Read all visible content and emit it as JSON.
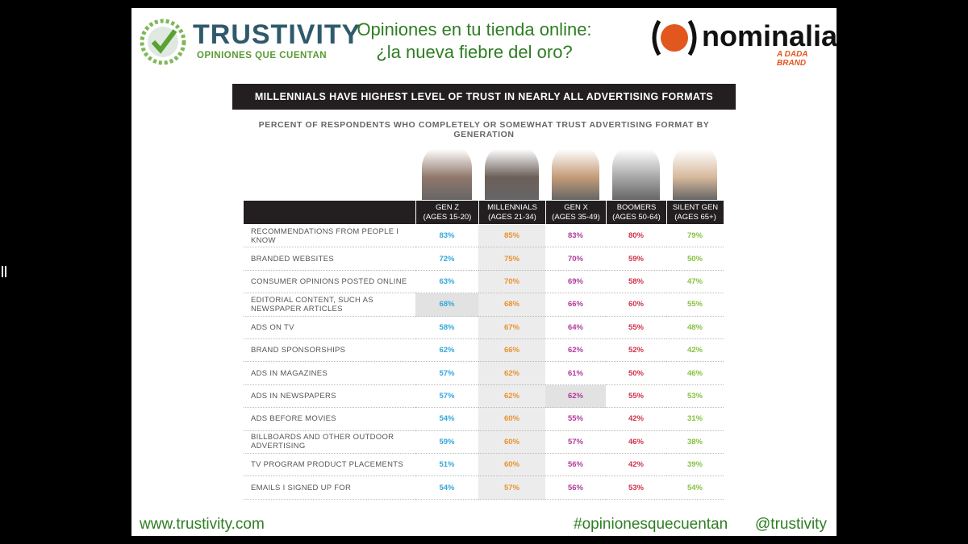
{
  "header": {
    "logo_name": "TRUSTIVITY",
    "logo_tagline": "OPINIONES QUE CUENTAN",
    "title_line1": "Opiniones en tu tienda online:",
    "title_line2": "¿la nueva fiebre del oro?",
    "partner_name": "nominalia",
    "partner_tagline": "A DADA BRAND"
  },
  "table": {
    "banner": "MILLENNIALS HAVE HIGHEST LEVEL OF TRUST IN NEARLY ALL ADVERTISING FORMATS",
    "subtitle": "PERCENT OF RESPONDENTS WHO COMPLETELY OR SOMEWHAT TRUST ADVERTISING FORMAT BY GENERATION",
    "columns": [
      {
        "name": "GEN Z",
        "ages": "(AGES 15-20)"
      },
      {
        "name": "MILLENNIALS",
        "ages": "(AGES 21-34)"
      },
      {
        "name": "GEN X",
        "ages": "(AGES 35-49)"
      },
      {
        "name": "BOOMERS",
        "ages": "(AGES 50-64)"
      },
      {
        "name": "SILENT GEN",
        "ages": "(AGES 65+)"
      }
    ],
    "rows": [
      [
        "RECOMMENDATIONS FROM PEOPLE I KNOW",
        "83%",
        "85%",
        "83%",
        "80%",
        "79%"
      ],
      [
        "BRANDED WEBSITES",
        "72%",
        "75%",
        "70%",
        "59%",
        "50%"
      ],
      [
        "CONSUMER OPINIONS POSTED ONLINE",
        "63%",
        "70%",
        "69%",
        "58%",
        "47%"
      ],
      [
        "EDITORIAL CONTENT, SUCH AS NEWSPAPER ARTICLES",
        "68%",
        "68%",
        "66%",
        "60%",
        "55%"
      ],
      [
        "ADS ON TV",
        "58%",
        "67%",
        "64%",
        "55%",
        "48%"
      ],
      [
        "BRAND SPONSORSHIPS",
        "62%",
        "66%",
        "62%",
        "52%",
        "42%"
      ],
      [
        "ADS IN MAGAZINES",
        "57%",
        "62%",
        "61%",
        "50%",
        "46%"
      ],
      [
        "ADS IN NEWSPAPERS",
        "57%",
        "62%",
        "62%",
        "55%",
        "53%"
      ],
      [
        "ADS BEFORE MOVIES",
        "54%",
        "60%",
        "55%",
        "42%",
        "31%"
      ],
      [
        "BILLBOARDS AND OTHER OUTDOOR ADVERTISING",
        "59%",
        "60%",
        "57%",
        "46%",
        "38%"
      ],
      [
        "TV PROGRAM PRODUCT PLACEMENTS",
        "51%",
        "60%",
        "56%",
        "42%",
        "39%"
      ],
      [
        "EMAILS I SIGNED UP FOR",
        "54%",
        "57%",
        "56%",
        "53%",
        "54%"
      ]
    ]
  },
  "footer": {
    "url": "www.trustivity.com",
    "hashtag": "#opinionesquecuentan",
    "handle": "@trustivity"
  }
}
